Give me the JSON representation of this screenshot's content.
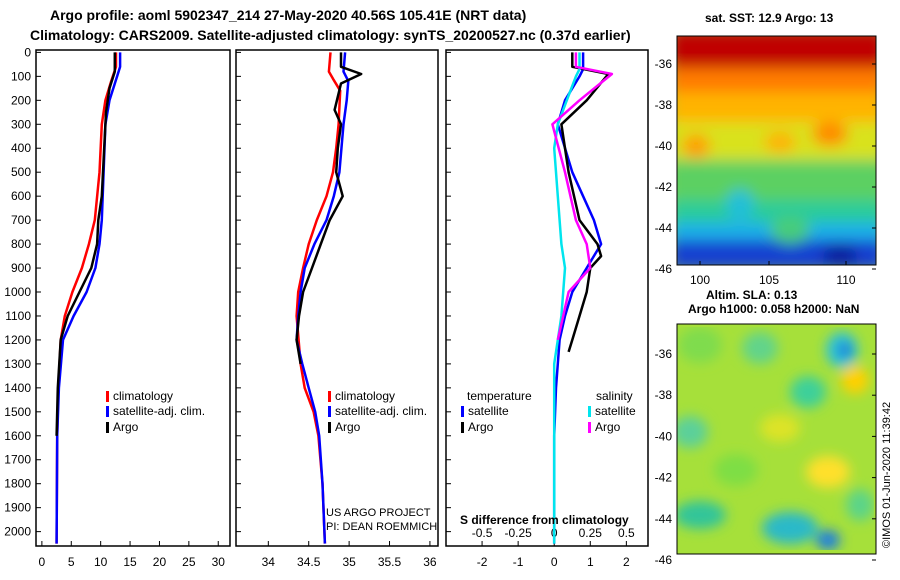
{
  "header": {
    "line1": "Argo profile: aoml 5902347_214 27-May-2020 40.56S 105.41E (NRT data)",
    "line2": "Climatology: CARS2009. Satellite-adjusted climatology: synTS_20200527.nc (0.37d earlier)"
  },
  "colors": {
    "climatology": "#ff0000",
    "satellite": "#0000ff",
    "argo": "#000000",
    "salinity_satellite": "#00e5ee",
    "salinity_argo": "#ff00ff"
  },
  "chart_data": [
    {
      "type": "line",
      "name": "temperature-profile",
      "ylabel": "depth",
      "ylim": [
        2060,
        -10
      ],
      "xlim": [
        -1,
        32
      ],
      "yticks": [
        "0",
        "100",
        "200",
        "300",
        "400",
        "500",
        "600",
        "700",
        "800",
        "900",
        "1000",
        "1100",
        "1200",
        "1300",
        "1400",
        "1500",
        "1600",
        "1700",
        "1800",
        "1900",
        "2000"
      ],
      "xticks": [
        "0",
        "5",
        "10",
        "15",
        "20",
        "25",
        "30"
      ],
      "legend": [
        "climatology",
        "satellite-adj. clim.",
        "Argo"
      ],
      "legend_position": "lower-right",
      "series": [
        {
          "name": "climatology",
          "color": "#ff0000",
          "x": [
            12.6,
            12.6,
            11.8,
            10.8,
            10.2,
            9.8,
            9.0,
            8.0,
            6.8,
            5.2,
            3.9,
            3.2,
            2.8,
            2.6,
            2.5
          ],
          "y": [
            0,
            60,
            120,
            200,
            300,
            500,
            700,
            800,
            900,
            1000,
            1100,
            1200,
            1400,
            1600,
            2050
          ]
        },
        {
          "name": "satellite-adj. clim.",
          "color": "#0000ff",
          "x": [
            13.3,
            13.3,
            12.8,
            11.5,
            10.8,
            10.5,
            10.2,
            9.8,
            9.1,
            7.6,
            5.4,
            3.6,
            2.9,
            2.6,
            2.5
          ],
          "y": [
            0,
            60,
            100,
            200,
            300,
            500,
            700,
            800,
            900,
            1000,
            1100,
            1200,
            1400,
            1600,
            2050
          ]
        },
        {
          "name": "Argo",
          "color": "#000000",
          "x": [
            12.4,
            12.4,
            11.5,
            10.9,
            10.6,
            10.2,
            9.6,
            9.4,
            8.4,
            6.4,
            4.4,
            3.2,
            2.7,
            2.5
          ],
          "y": [
            0,
            80,
            150,
            250,
            400,
            600,
            700,
            800,
            900,
            1000,
            1100,
            1200,
            1400,
            1600
          ]
        }
      ]
    },
    {
      "type": "line",
      "name": "salinity-profile",
      "ylim": [
        2060,
        -10
      ],
      "xlim": [
        33.6,
        36.1
      ],
      "xticks": [
        "34",
        "34.5",
        "35",
        "35.5",
        "36"
      ],
      "legend": [
        "climatology",
        "satellite-adj. clim.",
        "Argo"
      ],
      "legend_position": "lower-right",
      "annotations": [
        "US ARGO PROJECT",
        "PI: DEAN ROEMMICH"
      ],
      "series": [
        {
          "name": "climatology",
          "color": "#ff0000",
          "x": [
            34.77,
            34.75,
            34.8,
            34.89,
            34.87,
            34.84,
            34.8,
            34.72,
            34.6,
            34.5,
            34.43,
            34.37,
            34.35,
            34.4,
            34.45,
            34.56,
            34.62,
            34.67,
            34.7
          ],
          "y": [
            0,
            80,
            110,
            160,
            300,
            400,
            500,
            600,
            700,
            800,
            900,
            1000,
            1100,
            1300,
            1400,
            1500,
            1600,
            1800,
            2050
          ]
        },
        {
          "name": "satellite-adj. clim.",
          "color": "#0000ff",
          "x": [
            34.95,
            34.93,
            34.99,
            34.97,
            34.93,
            34.88,
            34.81,
            34.72,
            34.57,
            34.45,
            34.4,
            34.37,
            34.35,
            34.42,
            34.5,
            34.58,
            34.63,
            34.67,
            34.7
          ],
          "y": [
            0,
            80,
            120,
            200,
            300,
            500,
            600,
            700,
            800,
            900,
            1000,
            1100,
            1200,
            1300,
            1400,
            1500,
            1600,
            1800,
            2050
          ]
        },
        {
          "name": "Argo",
          "color": "#000000",
          "x": [
            34.9,
            34.9,
            35.15,
            34.9,
            34.82,
            34.9,
            34.86,
            34.84,
            34.92,
            34.76,
            34.65,
            34.54,
            34.43,
            34.38,
            34.35,
            34.4
          ],
          "y": [
            0,
            60,
            90,
            130,
            240,
            300,
            400,
            500,
            600,
            700,
            800,
            900,
            1000,
            1100,
            1200,
            1300
          ]
        }
      ]
    },
    {
      "type": "line",
      "name": "difference-profile",
      "ylim": [
        2060,
        -10
      ],
      "xlim": [
        -3.0,
        2.6
      ],
      "xticks": [
        "-2",
        "-1",
        "0",
        "1",
        "2"
      ],
      "xlabel": "S difference from climatology",
      "xticks_salinity": [
        "-0.5",
        "-0.25",
        "0",
        "0.25",
        "0.5"
      ],
      "legend_titles": [
        "temperature",
        "salinity"
      ],
      "legend": [
        "satellite",
        "Argo",
        "satellite",
        "Argo"
      ],
      "legend_position": "lower-center",
      "series": [
        {
          "name": "temperature satellite",
          "color": "#0000ff",
          "x": [
            0.8,
            0.8,
            0.7,
            0.3,
            0.1,
            0.5,
            0.8,
            1.1,
            1.3,
            0.9,
            0.5,
            0.3,
            0.15,
            0.05,
            0.0,
            0.0
          ],
          "y": [
            0,
            70,
            100,
            200,
            300,
            500,
            600,
            700,
            800,
            900,
            1000,
            1100,
            1200,
            1400,
            1600,
            2050
          ]
        },
        {
          "name": "temperature Argo",
          "color": "#000000",
          "x": [
            0.5,
            0.5,
            1.5,
            0.9,
            0.2,
            0.4,
            0.7,
            1.2,
            1.3,
            1.0,
            0.9,
            0.7,
            0.5,
            0.4
          ],
          "y": [
            0,
            60,
            90,
            200,
            300,
            500,
            700,
            800,
            850,
            900,
            1000,
            1100,
            1200,
            1250
          ]
        },
        {
          "name": "salinity satellite",
          "color": "#00e5ee",
          "x": [
            0.7,
            0.7,
            0.6,
            0.35,
            0.1,
            0.0,
            0.1,
            0.2,
            0.3,
            0.25,
            0.2,
            0.1,
            0.0,
            0.0
          ],
          "y": [
            0,
            70,
            100,
            200,
            300,
            400,
            600,
            800,
            900,
            1000,
            1100,
            1200,
            1300,
            2050
          ]
        },
        {
          "name": "salinity Argo",
          "color": "#ff00ff",
          "x": [
            0.6,
            0.6,
            1.6,
            0.7,
            -0.05,
            0.3,
            0.6,
            0.9,
            1.0,
            0.4,
            0.25,
            0.1
          ],
          "y": [
            0,
            60,
            90,
            200,
            300,
            500,
            700,
            800,
            900,
            1000,
            1100,
            1200
          ]
        }
      ]
    },
    {
      "type": "heatmap",
      "name": "sst-map",
      "title": "sat. SST: 12.9  Argo: 13",
      "yticks": [
        "-36",
        "-38",
        "-40",
        "-42",
        "-44",
        "-46"
      ],
      "xticks": [
        "100",
        "105",
        "110"
      ]
    },
    {
      "type": "heatmap",
      "name": "sla-map",
      "title": "Altim. SLA: 0.13",
      "subtitle": "Argo h1000: 0.058 h2000: NaN",
      "yticks": [
        "-36",
        "-38",
        "-40",
        "-42",
        "-44",
        "-46"
      ],
      "credit": "©IMOS 01-Jun-2020 11:39:42"
    }
  ]
}
